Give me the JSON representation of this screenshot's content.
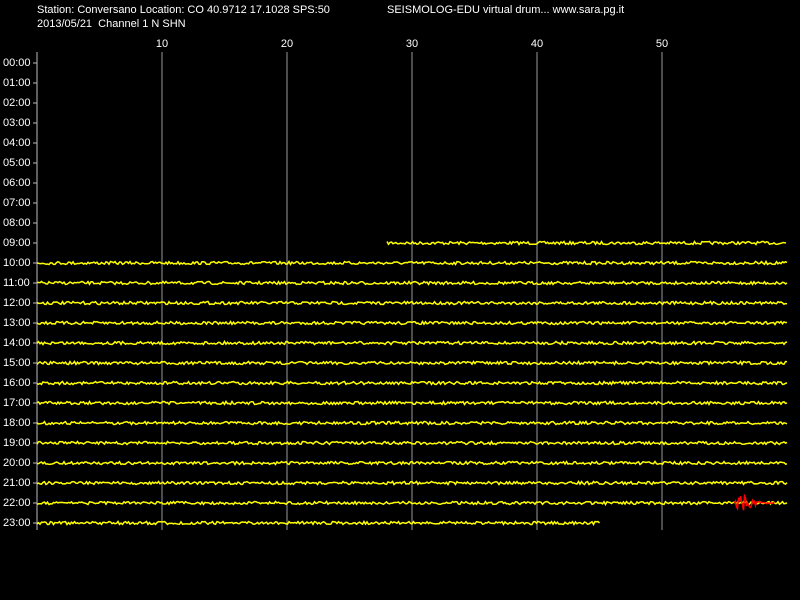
{
  "chart_data": {
    "type": "drum",
    "title": "Station: Conversano Location: CO 40.9712 17.1028 SPS:50",
    "title_right": "SEISMOLOG-EDU virtual drum... www.sara.pg.it",
    "subtitle": "2013/05/21  Channel 1 N SHN",
    "xlim": [
      0,
      60
    ],
    "xticks": [
      10,
      20,
      30,
      40,
      50
    ],
    "grid": true,
    "categories": [
      "00:00",
      "01:00",
      "02:00",
      "03:00",
      "04:00",
      "05:00",
      "06:00",
      "07:00",
      "08:00",
      "09:00",
      "10:00",
      "11:00",
      "12:00",
      "13:00",
      "14:00",
      "15:00",
      "16:00",
      "17:00",
      "18:00",
      "19:00",
      "20:00",
      "21:00",
      "22:00",
      "23:00"
    ],
    "start": [
      null,
      null,
      null,
      null,
      null,
      null,
      null,
      null,
      null,
      28,
      0,
      0,
      0,
      0,
      0,
      0,
      0,
      0,
      0,
      0,
      0,
      0,
      0,
      0
    ],
    "end": [
      null,
      null,
      null,
      null,
      null,
      null,
      null,
      null,
      null,
      60,
      60,
      60,
      60,
      60,
      60,
      60,
      60,
      60,
      60,
      60,
      60,
      60,
      60,
      45
    ],
    "color": "#ffff00",
    "event": {
      "hour": "22:00",
      "start": 55.8,
      "end": 59,
      "color": "#ff0000"
    }
  }
}
